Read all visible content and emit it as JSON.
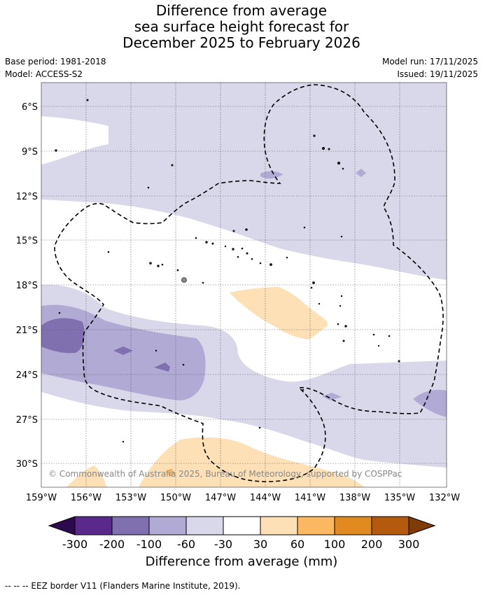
{
  "title": {
    "line1": "Difference from average",
    "line2": "sea surface height forecast for",
    "line3": "December 2025 to February 2026"
  },
  "meta": {
    "base_period": "Base period: 1981-2018",
    "model": "Model: ACCESS-S2",
    "model_run": "Model run: 17/11/2025",
    "issued": "Issued: 19/11/2025"
  },
  "copyright": "© Commonwealth of Australia 2025, Bureau of Meteorology, supported by COSPPac",
  "axes": {
    "lon_ticks": [
      "159°W",
      "156°W",
      "153°W",
      "150°W",
      "147°W",
      "144°W",
      "141°W",
      "138°W",
      "135°W",
      "132°W"
    ],
    "lat_ticks": [
      "6°S",
      "9°S",
      "12°S",
      "15°S",
      "18°S",
      "21°S",
      "24°S",
      "27°S",
      "30°S"
    ]
  },
  "colorbar": {
    "title": "Difference from average (mm)",
    "tick_labels": [
      "-300",
      "-200",
      "-100",
      "-60",
      "-30",
      "30",
      "60",
      "100",
      "200",
      "300"
    ],
    "colors": {
      "below_min": "#2d0a4e",
      "bins": [
        "#5a2a8a",
        "#8070b0",
        "#b0aad4",
        "#d8d8ea",
        "#ffffff",
        "#fde0b6",
        "#fbb761",
        "#e08a20",
        "#b35a0f"
      ],
      "above_max": "#7f3b08"
    }
  },
  "footnote": "--  --  -- EEZ border V11 (Flanders Marine Institute, 2019)."
}
